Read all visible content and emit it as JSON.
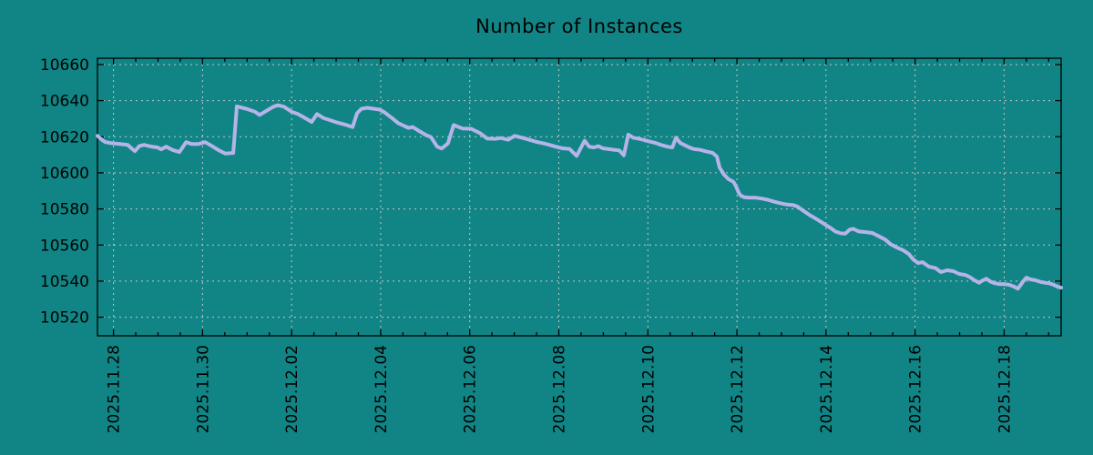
{
  "title": "Number of Instances",
  "colors": {
    "background": "#118585",
    "line": "#b6b3e9",
    "grid": "#c6c6c6",
    "axis": "#000000",
    "text": "#000000"
  },
  "chart_data": {
    "type": "line",
    "title": "Number of Instances",
    "xlabel": "",
    "ylabel": "",
    "grid": true,
    "legend": "none",
    "y_ticks": [
      10520,
      10540,
      10560,
      10580,
      10600,
      10620,
      10640,
      10660
    ],
    "ylim": [
      10509.7,
      10663.5
    ],
    "x_tick_labels": [
      "2025.11.28",
      "2025.11.30",
      "2025.12.02",
      "2025.12.04",
      "2025.12.06",
      "2025.12.08",
      "2025.12.10",
      "2025.12.12",
      "2025.12.14",
      "2025.12.16",
      "2025.12.18"
    ],
    "x_tick_days": [
      0,
      2,
      4,
      6,
      8,
      10,
      12,
      14,
      16,
      18,
      20
    ],
    "x_minor_step_days": 0.5,
    "xlim_days": [
      -0.36,
      21.28
    ],
    "series": [
      {
        "name": "instances",
        "points": [
          [
            -0.36,
            10620.5
          ],
          [
            -0.26,
            10618.3
          ],
          [
            -0.19,
            10617.1
          ],
          [
            -0.09,
            10616.6
          ],
          [
            0.01,
            10616.3
          ],
          [
            0.11,
            10616.1
          ],
          [
            0.21,
            10615.8
          ],
          [
            0.32,
            10615.5
          ],
          [
            0.42,
            10613.3
          ],
          [
            0.48,
            10612.0
          ],
          [
            0.58,
            10614.9
          ],
          [
            0.69,
            10615.5
          ],
          [
            0.79,
            10614.9
          ],
          [
            0.89,
            10614.4
          ],
          [
            0.99,
            10614.1
          ],
          [
            1.07,
            10613.0
          ],
          [
            1.18,
            10614.5
          ],
          [
            1.34,
            10612.5
          ],
          [
            1.48,
            10611.5
          ],
          [
            1.63,
            10617.0
          ],
          [
            1.75,
            10616.0
          ],
          [
            1.91,
            10616.0
          ],
          [
            2.06,
            10617.0
          ],
          [
            2.2,
            10615.0
          ],
          [
            2.36,
            10612.5
          ],
          [
            2.51,
            10610.7
          ],
          [
            2.69,
            10611.0
          ],
          [
            2.77,
            10636.8
          ],
          [
            2.98,
            10635.5
          ],
          [
            3.18,
            10633.8
          ],
          [
            3.28,
            10632.1
          ],
          [
            3.45,
            10634.6
          ],
          [
            3.59,
            10636.6
          ],
          [
            3.69,
            10637.5
          ],
          [
            3.83,
            10636.6
          ],
          [
            4.0,
            10633.8
          ],
          [
            4.14,
            10632.6
          ],
          [
            4.3,
            10630.4
          ],
          [
            4.45,
            10628.2
          ],
          [
            4.57,
            10632.6
          ],
          [
            4.71,
            10630.4
          ],
          [
            4.86,
            10629.2
          ],
          [
            5.02,
            10627.9
          ],
          [
            5.22,
            10626.6
          ],
          [
            5.37,
            10625.4
          ],
          [
            5.47,
            10633.0
          ],
          [
            5.57,
            10635.5
          ],
          [
            5.7,
            10636.0
          ],
          [
            5.84,
            10635.5
          ],
          [
            5.98,
            10635.0
          ],
          [
            6.1,
            10633.3
          ],
          [
            6.25,
            10630.4
          ],
          [
            6.39,
            10627.6
          ],
          [
            6.51,
            10626.2
          ],
          [
            6.62,
            10624.9
          ],
          [
            6.72,
            10625.4
          ],
          [
            6.86,
            10623.2
          ],
          [
            7.0,
            10621.2
          ],
          [
            7.13,
            10619.8
          ],
          [
            7.27,
            10614.5
          ],
          [
            7.37,
            10613.5
          ],
          [
            7.51,
            10616.3
          ],
          [
            7.64,
            10626.5
          ],
          [
            7.84,
            10624.5
          ],
          [
            8.03,
            10624.4
          ],
          [
            8.23,
            10622.0
          ],
          [
            8.39,
            10619.0
          ],
          [
            8.56,
            10618.8
          ],
          [
            8.7,
            10619.3
          ],
          [
            8.86,
            10618.3
          ],
          [
            9.01,
            10620.5
          ],
          [
            9.17,
            10619.5
          ],
          [
            9.38,
            10618.0
          ],
          [
            9.52,
            10617.0
          ],
          [
            9.66,
            10616.3
          ],
          [
            9.79,
            10615.5
          ],
          [
            9.93,
            10614.5
          ],
          [
            10.09,
            10613.6
          ],
          [
            10.24,
            10613.3
          ],
          [
            10.4,
            10609.4
          ],
          [
            10.58,
            10617.8
          ],
          [
            10.68,
            10614.5
          ],
          [
            10.79,
            10614.1
          ],
          [
            10.89,
            10614.8
          ],
          [
            10.99,
            10613.6
          ],
          [
            11.09,
            10613.3
          ],
          [
            11.22,
            10612.8
          ],
          [
            11.36,
            10612.4
          ],
          [
            11.46,
            10609.7
          ],
          [
            11.56,
            10621.2
          ],
          [
            11.67,
            10619.5
          ],
          [
            11.77,
            10619.0
          ],
          [
            11.91,
            10618.2
          ],
          [
            12.01,
            10617.5
          ],
          [
            12.18,
            10616.5
          ],
          [
            12.32,
            10615.3
          ],
          [
            12.44,
            10614.5
          ],
          [
            12.55,
            10614.1
          ],
          [
            12.63,
            10619.5
          ],
          [
            12.73,
            10616.5
          ],
          [
            12.83,
            10615.3
          ],
          [
            12.94,
            10614.0
          ],
          [
            13.04,
            10613.1
          ],
          [
            13.16,
            10612.8
          ],
          [
            13.3,
            10611.9
          ],
          [
            13.45,
            10611.1
          ],
          [
            13.55,
            10609.0
          ],
          [
            13.61,
            10603.0
          ],
          [
            13.71,
            10599.0
          ],
          [
            13.81,
            10596.5
          ],
          [
            13.92,
            10595.0
          ],
          [
            13.98,
            10592.5
          ],
          [
            14.04,
            10589.0
          ],
          [
            14.08,
            10587.5
          ],
          [
            14.16,
            10586.5
          ],
          [
            14.28,
            10586.2
          ],
          [
            14.43,
            10586.2
          ],
          [
            14.57,
            10585.7
          ],
          [
            14.69,
            10585.1
          ],
          [
            14.84,
            10584.0
          ],
          [
            14.98,
            10583.1
          ],
          [
            15.1,
            10582.5
          ],
          [
            15.25,
            10582.2
          ],
          [
            15.35,
            10581.4
          ],
          [
            15.45,
            10579.7
          ],
          [
            15.55,
            10578.0
          ],
          [
            15.65,
            10576.3
          ],
          [
            15.76,
            10574.8
          ],
          [
            15.86,
            10573.3
          ],
          [
            16.0,
            10571.0
          ],
          [
            16.1,
            10569.5
          ],
          [
            16.21,
            10567.5
          ],
          [
            16.33,
            10566.5
          ],
          [
            16.43,
            10566.3
          ],
          [
            16.53,
            10568.5
          ],
          [
            16.61,
            10569.0
          ],
          [
            16.74,
            10567.5
          ],
          [
            16.88,
            10567.2
          ],
          [
            17.04,
            10566.7
          ],
          [
            17.19,
            10564.8
          ],
          [
            17.33,
            10563.0
          ],
          [
            17.45,
            10560.5
          ],
          [
            17.6,
            10558.5
          ],
          [
            17.74,
            10557.0
          ],
          [
            17.86,
            10555.0
          ],
          [
            17.96,
            10552.0
          ],
          [
            18.07,
            10550.0
          ],
          [
            18.17,
            10550.5
          ],
          [
            18.31,
            10548.0
          ],
          [
            18.46,
            10547.2
          ],
          [
            18.58,
            10545.0
          ],
          [
            18.72,
            10546.0
          ],
          [
            18.86,
            10545.5
          ],
          [
            18.99,
            10544.0
          ],
          [
            19.13,
            10543.4
          ],
          [
            19.23,
            10542.2
          ],
          [
            19.33,
            10540.5
          ],
          [
            19.44,
            10539.1
          ],
          [
            19.5,
            10540.1
          ],
          [
            19.6,
            10541.3
          ],
          [
            19.7,
            10539.6
          ],
          [
            19.8,
            10538.8
          ],
          [
            19.91,
            10538.3
          ],
          [
            20.01,
            10538.3
          ],
          [
            20.11,
            10538.0
          ],
          [
            20.21,
            10537.1
          ],
          [
            20.31,
            10535.8
          ],
          [
            20.42,
            10539.6
          ],
          [
            20.5,
            10541.9
          ],
          [
            20.6,
            10540.9
          ],
          [
            20.7,
            10540.5
          ],
          [
            20.81,
            10539.6
          ],
          [
            20.91,
            10539.1
          ],
          [
            21.01,
            10538.8
          ],
          [
            21.11,
            10538.0
          ],
          [
            21.21,
            10536.8
          ],
          [
            21.28,
            10536.4
          ]
        ]
      }
    ]
  }
}
